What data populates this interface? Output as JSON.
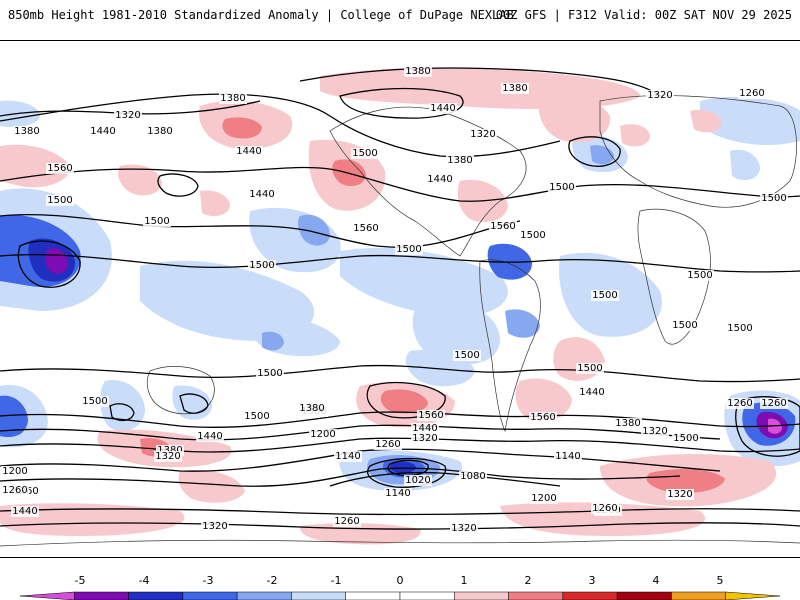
{
  "header": {
    "title": "850mb Height 1981-2010 Standardized Anomaly | College of DuPage NEXLAB",
    "run_info": "00Z GFS | F312 Valid: 00Z SAT NOV 29 2025"
  },
  "map": {
    "contour_labels": [
      "1380",
      "1260",
      "1320",
      "1440",
      "1500",
      "1560",
      "1200",
      "1140",
      "1080",
      "1020"
    ],
    "placed_labels": [
      {
        "v": "1380"
      },
      {
        "v": "1380"
      },
      {
        "v": "1320"
      },
      {
        "v": "1260"
      },
      {
        "v": "1380"
      },
      {
        "v": "1440"
      },
      {
        "v": "1320"
      },
      {
        "v": "1380"
      },
      {
        "v": "1440"
      },
      {
        "v": "1320"
      },
      {
        "v": "1380"
      },
      {
        "v": "1440"
      },
      {
        "v": "1500"
      },
      {
        "v": "1380"
      },
      {
        "v": "1440"
      },
      {
        "v": "1560"
      },
      {
        "v": "1500"
      },
      {
        "v": "1440"
      },
      {
        "v": "1560"
      },
      {
        "v": "1500"
      },
      {
        "v": "1560"
      },
      {
        "v": "1500"
      },
      {
        "v": "1500"
      },
      {
        "v": "1500"
      },
      {
        "v": "1500"
      },
      {
        "v": "1500"
      },
      {
        "v": "1500"
      },
      {
        "v": "1500"
      },
      {
        "v": "1500"
      },
      {
        "v": "1500"
      },
      {
        "v": "1500"
      },
      {
        "v": "1500"
      },
      {
        "v": "1500"
      },
      {
        "v": "1500"
      },
      {
        "v": "1560"
      },
      {
        "v": "1560"
      },
      {
        "v": "1440"
      },
      {
        "v": "1500"
      },
      {
        "v": "1380"
      },
      {
        "v": "1260"
      },
      {
        "v": "1320"
      },
      {
        "v": "1380"
      },
      {
        "v": "1440"
      },
      {
        "v": "1200"
      },
      {
        "v": "1260"
      },
      {
        "v": "1320"
      },
      {
        "v": "1440"
      },
      {
        "v": "1380"
      },
      {
        "v": "1320"
      },
      {
        "v": "1260"
      },
      {
        "v": "1140"
      },
      {
        "v": "1080"
      },
      {
        "v": "1020"
      },
      {
        "v": "1140"
      },
      {
        "v": "1140"
      },
      {
        "v": "1200"
      },
      {
        "v": "1260"
      },
      {
        "v": "1320"
      },
      {
        "v": "1200"
      },
      {
        "v": "1260"
      },
      {
        "v": "1440"
      },
      {
        "v": "1320"
      },
      {
        "v": "1260"
      },
      {
        "v": "1320"
      },
      {
        "v": "1260"
      },
      {
        "v": "1320"
      },
      {
        "v": "1380"
      },
      {
        "v": "1260"
      },
      {
        "v": "1500"
      }
    ]
  },
  "legend": {
    "ticks": [
      "-5",
      "-4",
      "-3",
      "-2",
      "-1",
      "0",
      "1",
      "2",
      "3",
      "4",
      "5"
    ],
    "colors": [
      "#d64fd6",
      "#7d0cb3",
      "#1f2fbf",
      "#3f67e6",
      "#86a8f0",
      "#c9dcf9",
      "#ffffff",
      "#ffffff",
      "#f8c9cc",
      "#ef7f84",
      "#d62a2a",
      "#a00010",
      "#f0a020",
      "#f5c400"
    ]
  }
}
